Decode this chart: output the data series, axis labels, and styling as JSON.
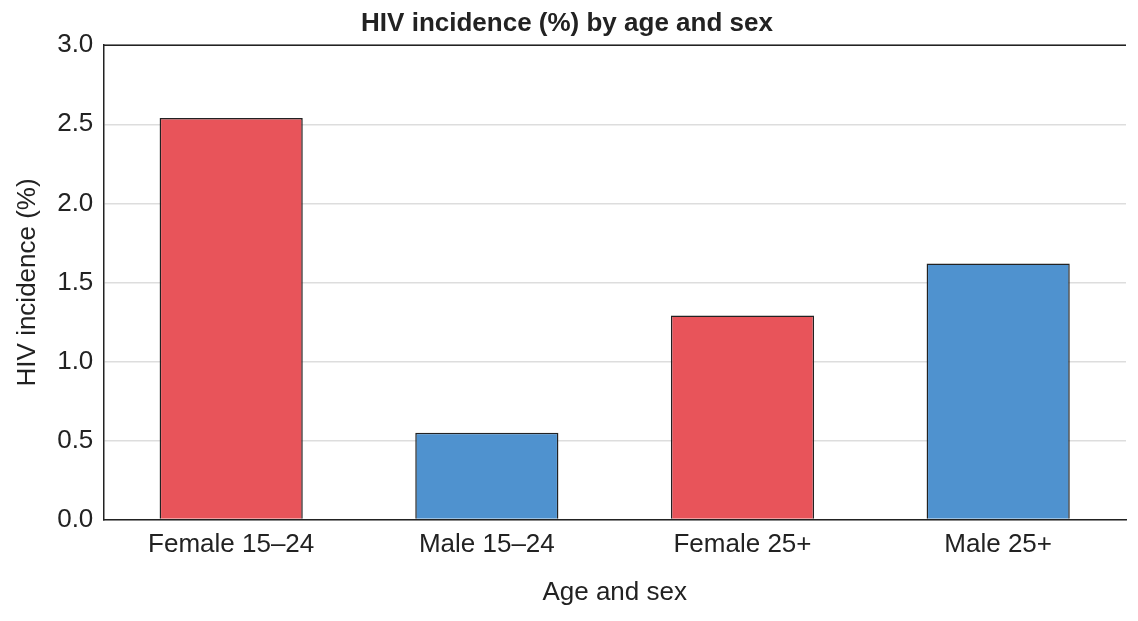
{
  "chart_data": {
    "type": "bar",
    "title": "HIV incidence (%) by age and sex",
    "xlabel": "Age and sex",
    "ylabel": "HIV incidence (%)",
    "categories": [
      "Female 15–24",
      "Male 15–24",
      "Female 25+",
      "Male 25+"
    ],
    "values": [
      2.54,
      0.55,
      1.29,
      1.62
    ],
    "colors": [
      "#e8545a",
      "#4f92cf",
      "#e8545a",
      "#4f92cf"
    ],
    "ylim": [
      0,
      3
    ],
    "yticks": [
      {
        "value": 0,
        "label": "0.0"
      },
      {
        "value": 0.5,
        "label": "0.5"
      },
      {
        "value": 1,
        "label": "1.0"
      },
      {
        "value": 1.5,
        "label": "1.5"
      },
      {
        "value": 2,
        "label": "2.0"
      },
      {
        "value": 2.5,
        "label": "2.5"
      },
      {
        "value": 3,
        "label": "3.0"
      }
    ],
    "grid": "y"
  }
}
